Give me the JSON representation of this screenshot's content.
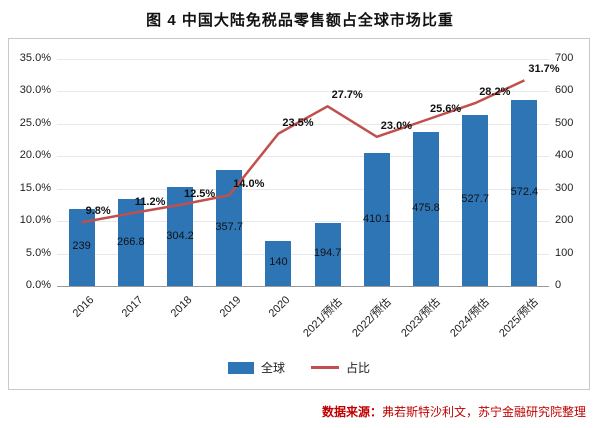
{
  "title": "图 4  中国大陆免税品零售额占全球市场比重",
  "legend": {
    "bar": "全球",
    "line": "占比"
  },
  "footer": {
    "label": "数据来源：",
    "text": "弗若斯特沙利文，苏宁金融研究院整理"
  },
  "colors": {
    "bar": "#2e75b6",
    "line": "#c0504d",
    "footer": "#c00000"
  },
  "chart_data": {
    "type": "bar+line",
    "title": "图 4  中国大陆免税品零售额占全球市场比重",
    "categories": [
      "2016",
      "2017",
      "2018",
      "2019",
      "2020",
      "2021/预估",
      "2022/预估",
      "2023/预估",
      "2024/预估",
      "2025/预估"
    ],
    "series": [
      {
        "name": "全球",
        "type": "bar",
        "axis": "right",
        "values": [
          239,
          266.8,
          304.2,
          357.7,
          140,
          194.7,
          410.1,
          475.8,
          527.7,
          572.4
        ]
      },
      {
        "name": "占比",
        "type": "line",
        "axis": "left",
        "values": [
          9.8,
          11.2,
          12.5,
          14.0,
          23.5,
          27.7,
          23.0,
          25.6,
          28.2,
          31.7
        ]
      }
    ],
    "bar_labels": [
      "239",
      "266.8",
      "304.2",
      "357.7",
      "140",
      "194.7",
      "410.1",
      "475.8",
      "527.7",
      "572.4"
    ],
    "line_labels": [
      "9.8%",
      "11.2%",
      "12.5%",
      "14.0%",
      "23.5%",
      "27.7%",
      "23.0%",
      "25.6%",
      "28.2%",
      "31.7%"
    ],
    "left_axis": {
      "min": 0,
      "max": 35,
      "step": 5,
      "format": "percent",
      "ticks": [
        "0.0%",
        "5.0%",
        "10.0%",
        "15.0%",
        "20.0%",
        "25.0%",
        "30.0%",
        "35.0%"
      ]
    },
    "right_axis": {
      "min": 0,
      "max": 700,
      "step": 100,
      "ticks": [
        "0",
        "100",
        "200",
        "300",
        "400",
        "500",
        "600",
        "700"
      ]
    },
    "grid": true,
    "legend_position": "bottom"
  }
}
